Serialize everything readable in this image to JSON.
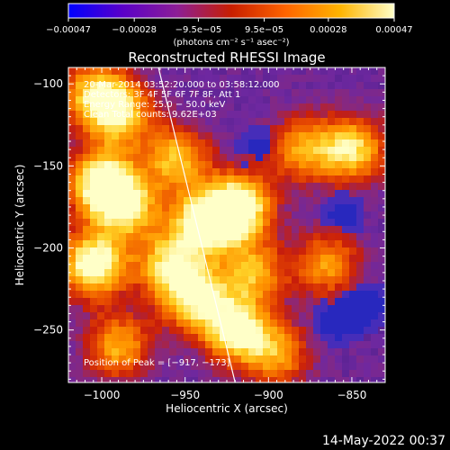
{
  "chart_data": {
    "type": "heatmap",
    "title": "Reconstructed RHESSI Image",
    "xlabel": "Heliocentric X (arcsec)",
    "ylabel": "Heliocentric Y (arcsec)",
    "xlim": [
      -1020,
      -830
    ],
    "ylim": [
      -282,
      -90
    ],
    "x_ticks": [
      -1000,
      -950,
      -900,
      -850
    ],
    "x_tick_labels": [
      "−1000",
      "−950",
      "−900",
      "−850"
    ],
    "y_ticks": [
      -100,
      -150,
      -200,
      -250
    ],
    "y_tick_labels": [
      "−100",
      "−150",
      "−200",
      "−250"
    ],
    "colorbar": {
      "ticks": [
        -0.00047,
        -0.00028,
        -9.5e-05,
        9.5e-05,
        0.00028,
        0.00047
      ],
      "tick_labels": [
        "−0.00047",
        "−0.00028",
        "−9.5e−05",
        "9.5e−05",
        "0.00028",
        "0.00047"
      ],
      "units": "(photons cm⁻² s⁻¹ asec⁻²)",
      "colors": [
        "#0000ff",
        "#5a00c8",
        "#8c1e96",
        "#c81e00",
        "#ff6400",
        "#ffb400",
        "#ffffc8"
      ]
    },
    "annotations": [
      "20-Mar-2014 03:52:20.000 to 03:58:12.000",
      "Detectors: 3F 4F 5F 6F 7F 8F, Att 1",
      "Energy Range: 25.0 − 50.0 keV",
      "Clean    Total counts: 9.62E+03"
    ],
    "peak_label": "Position of Peak = [−917, −173]",
    "peak": [
      -917,
      -173
    ],
    "limb_line": [
      [
        -966,
        -90
      ],
      [
        -920,
        -282
      ]
    ],
    "hot_spots": [
      {
        "x": -1005,
        "y": -105,
        "v": 0.6
      },
      {
        "x": -990,
        "y": -118,
        "v": 0.75
      },
      {
        "x": -1000,
        "y": -160,
        "v": 0.9
      },
      {
        "x": -985,
        "y": -175,
        "v": 0.7
      },
      {
        "x": -955,
        "y": -145,
        "v": 0.65
      },
      {
        "x": -940,
        "y": -185,
        "v": 0.8
      },
      {
        "x": -918,
        "y": -175,
        "v": 1.0
      },
      {
        "x": -960,
        "y": -210,
        "v": 0.65
      },
      {
        "x": -1005,
        "y": -210,
        "v": 0.95
      },
      {
        "x": -990,
        "y": -260,
        "v": 0.6
      },
      {
        "x": -945,
        "y": -230,
        "v": 0.75
      },
      {
        "x": -920,
        "y": -250,
        "v": 0.85
      },
      {
        "x": -895,
        "y": -265,
        "v": 0.55
      },
      {
        "x": -880,
        "y": -140,
        "v": 0.55
      },
      {
        "x": -850,
        "y": -140,
        "v": 0.75
      },
      {
        "x": -865,
        "y": -210,
        "v": 0.55
      },
      {
        "x": -910,
        "y": -215,
        "v": 0.6
      }
    ],
    "cold_spots": [
      {
        "x": -840,
        "y": -235
      },
      {
        "x": -860,
        "y": -245
      },
      {
        "x": -905,
        "y": -140
      },
      {
        "x": -855,
        "y": -180
      }
    ],
    "grid": false
  },
  "footer": {
    "timestamp": "14-May-2022 00:37"
  }
}
